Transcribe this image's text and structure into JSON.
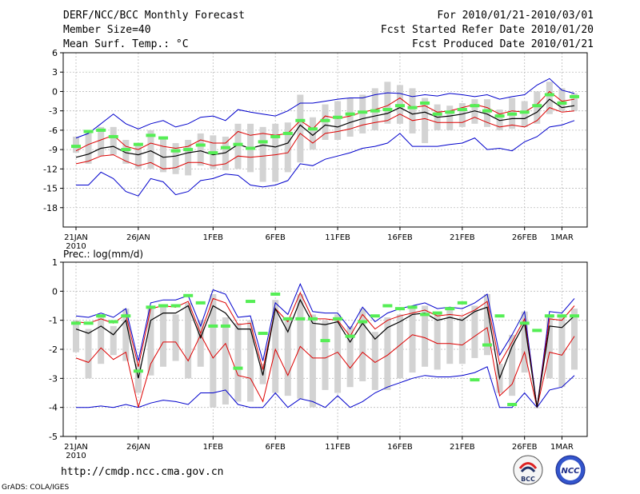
{
  "header": {
    "title": "DERF/NCC/BCC Monthly Forecast",
    "member_size": "Member Size=40",
    "variable_top": "Mean Surf. Temp.: °C",
    "period": "For 2010/01/21-2010/03/01",
    "started": "Fcst Started Refer Date 2010/01/20",
    "produced": "Fcst Produced Date 2010/01/21"
  },
  "footer": {
    "url": "http://cmdp.ncc.cma.gov.cn",
    "grads": "GrADS: COLA/IGES",
    "logo_bcc": "BCC",
    "logo_ncc": "NCC"
  },
  "colors": {
    "box": "#d3d3d3",
    "spread": "#0000cc",
    "lower": "#dd0000",
    "mean": "#000000",
    "median": "#55ee55",
    "grid": "#bbbbbb"
  },
  "chart_data": [
    {
      "type": "line",
      "title": "Mean Surf. Temp.: °C",
      "x_tick_labels": [
        "21JAN",
        "26JAN",
        "1FEB",
        "6FEB",
        "11FEB",
        "16FEB",
        "21FEB",
        "26FEB",
        "1MAR"
      ],
      "x_tick_index": [
        0,
        5,
        11,
        16,
        21,
        26,
        31,
        36,
        39
      ],
      "x_sublabel": "2010",
      "ylim": [
        -21,
        6
      ],
      "yticks": [
        6,
        3,
        0,
        -3,
        -6,
        -9,
        -12,
        -15,
        -18
      ],
      "series": [
        {
          "name": "max",
          "values": [
            -7.2,
            -6.5,
            -5.0,
            -3.5,
            -5.0,
            -5.8,
            -5.0,
            -4.5,
            -5.5,
            -5.0,
            -4.0,
            -3.8,
            -4.5,
            -2.8,
            -3.2,
            -3.5,
            -3.8,
            -3.0,
            -1.8,
            -1.8,
            -1.5,
            -1.2,
            -1.0,
            -1.0,
            -0.5,
            -0.2,
            -0.3,
            -0.8,
            -0.5,
            -0.7,
            -0.3,
            -0.5,
            -0.8,
            -0.5,
            -1.2,
            -0.8,
            -0.5,
            1.0,
            2.0,
            0.2,
            -0.3
          ]
        },
        {
          "name": "upper",
          "values": [
            -9.2,
            -8.2,
            -7.5,
            -6.8,
            -8.5,
            -9.0,
            -8.0,
            -8.5,
            -8.8,
            -8.5,
            -7.5,
            -8.0,
            -8.0,
            -6.2,
            -6.8,
            -6.5,
            -6.8,
            -6.5,
            -4.5,
            -5.8,
            -3.8,
            -4.2,
            -3.8,
            -3.2,
            -2.8,
            -2.2,
            -1.0,
            -2.5,
            -2.2,
            -3.2,
            -3.0,
            -2.5,
            -2.0,
            -2.5,
            -3.5,
            -3.0,
            -3.2,
            -2.0,
            0.0,
            -1.5,
            -1.2
          ]
        },
        {
          "name": "mean",
          "values": [
            -10.2,
            -9.7,
            -8.8,
            -8.5,
            -9.5,
            -9.8,
            -9.2,
            -10.2,
            -10.0,
            -9.5,
            -9.2,
            -9.8,
            -9.5,
            -8.2,
            -8.8,
            -8.3,
            -8.6,
            -8.0,
            -5.2,
            -6.8,
            -5.2,
            -5.5,
            -4.8,
            -4.2,
            -3.8,
            -3.4,
            -2.5,
            -3.5,
            -3.2,
            -4.0,
            -3.8,
            -3.5,
            -3.0,
            -3.5,
            -4.5,
            -4.2,
            -4.2,
            -3.2,
            -1.2,
            -2.5,
            -2.2
          ]
        },
        {
          "name": "lower",
          "values": [
            -11.2,
            -10.8,
            -10.0,
            -9.8,
            -10.8,
            -11.5,
            -11.0,
            -12.0,
            -11.8,
            -11.0,
            -11.0,
            -11.5,
            -11.2,
            -10.0,
            -10.2,
            -10.0,
            -9.8,
            -9.5,
            -6.5,
            -8.0,
            -6.5,
            -6.2,
            -5.8,
            -5.2,
            -4.8,
            -4.5,
            -3.5,
            -4.5,
            -4.2,
            -4.8,
            -4.8,
            -4.8,
            -4.0,
            -4.8,
            -5.5,
            -5.2,
            -5.5,
            -4.5,
            -2.5,
            -3.2,
            -3.0
          ]
        },
        {
          "name": "min",
          "values": [
            -14.5,
            -14.5,
            -12.5,
            -13.5,
            -15.5,
            -16.2,
            -13.5,
            -14.0,
            -16.0,
            -15.5,
            -13.8,
            -13.5,
            -12.8,
            -13.0,
            -14.5,
            -14.8,
            -14.5,
            -13.8,
            -11.2,
            -11.5,
            -10.5,
            -10.0,
            -9.5,
            -8.8,
            -8.5,
            -8.0,
            -6.5,
            -8.5,
            -8.5,
            -8.5,
            -8.2,
            -8.0,
            -7.2,
            -9.0,
            -8.8,
            -9.2,
            -7.8,
            -7.0,
            -5.5,
            -5.2,
            -4.5
          ]
        },
        {
          "name": "median",
          "values": [
            -8.5,
            -6.2,
            -6.0,
            -7.0,
            -9.0,
            -8.2,
            -6.8,
            -7.2,
            -9.2,
            -9.0,
            -8.3,
            -9.5,
            -8.7,
            -8.2,
            -8.8,
            -7.8,
            -7.0,
            -6.5,
            -4.5,
            -5.8,
            -4.5,
            -4.0,
            -3.5,
            -3.2,
            -3.0,
            -2.8,
            -2.2,
            -2.5,
            -1.8,
            -3.5,
            -3.2,
            -2.8,
            -2.2,
            -3.0,
            -3.8,
            -3.5,
            -3.2,
            -2.2,
            -0.5,
            -1.8,
            -0.8
          ]
        },
        {
          "name": "box_top",
          "values": [
            -7.0,
            -6.0,
            -5.5,
            -5.5,
            -7.5,
            -8.0,
            -6.0,
            -7.0,
            -8.0,
            -7.5,
            -6.5,
            -6.8,
            -7.0,
            -5.0,
            -5.0,
            -5.5,
            -5.0,
            -4.8,
            -0.5,
            -4.0,
            -2.0,
            -1.5,
            -1.0,
            -0.5,
            0.5,
            1.5,
            1.0,
            0.5,
            -1.0,
            -2.0,
            -2.2,
            -1.8,
            -1.2,
            -1.2,
            -2.8,
            -1.0,
            -1.5,
            0.0,
            1.5,
            0.5,
            -0.3
          ]
        },
        {
          "name": "box_bottom",
          "values": [
            -9.5,
            -11.2,
            -10.0,
            -9.8,
            -11.2,
            -12.0,
            -12.0,
            -12.5,
            -12.8,
            -13.0,
            -11.5,
            -12.0,
            -12.2,
            -12.0,
            -12.5,
            -14.0,
            -14.0,
            -12.5,
            -11.0,
            -9.0,
            -7.5,
            -7.5,
            -7.0,
            -6.5,
            -6.0,
            -5.0,
            -5.0,
            -6.5,
            -8.0,
            -6.0,
            -6.0,
            -5.5,
            -5.0,
            -5.5,
            -6.0,
            -5.8,
            -5.5,
            -5.0,
            -3.5,
            -3.0,
            -3.0
          ]
        }
      ]
    },
    {
      "type": "line",
      "title": "Prec.: log(mm/d)",
      "x_tick_labels": [
        "21JAN",
        "26JAN",
        "1FEB",
        "6FEB",
        "11FEB",
        "16FEB",
        "21FEB",
        "26FEB",
        "1MAR"
      ],
      "x_tick_index": [
        0,
        5,
        11,
        16,
        21,
        26,
        31,
        36,
        39
      ],
      "x_sublabel": "2010",
      "ylim": [
        -5,
        1
      ],
      "yticks": [
        1,
        0,
        -1,
        -2,
        -3,
        -4,
        -5
      ],
      "series": [
        {
          "name": "max",
          "values": [
            -0.85,
            -0.9,
            -0.75,
            -0.9,
            -0.6,
            -2.4,
            -0.4,
            -0.3,
            -0.3,
            -0.15,
            -1.2,
            0.05,
            -0.1,
            -0.9,
            -0.85,
            -2.4,
            -0.4,
            -0.8,
            0.25,
            -0.7,
            -0.75,
            -0.75,
            -1.3,
            -0.55,
            -1.05,
            -0.75,
            -0.6,
            -0.5,
            -0.4,
            -0.6,
            -0.55,
            -0.6,
            -0.4,
            -0.1,
            -2.2,
            -1.5,
            -0.7,
            -4.0,
            -0.7,
            -0.75,
            -0.25
          ]
        },
        {
          "name": "upper",
          "values": [
            -1.05,
            -1.1,
            -0.95,
            -1.1,
            -0.8,
            -2.6,
            -0.6,
            -0.5,
            -0.55,
            -0.35,
            -1.45,
            -0.25,
            -0.4,
            -1.15,
            -1.1,
            -2.7,
            -0.6,
            -1.05,
            -0.05,
            -0.95,
            -0.95,
            -1.0,
            -1.55,
            -0.8,
            -1.3,
            -1.0,
            -0.85,
            -0.75,
            -0.65,
            -0.85,
            -0.8,
            -0.85,
            -0.65,
            -0.35,
            -2.5,
            -1.75,
            -0.95,
            -4.0,
            -0.95,
            -1.0,
            -0.5
          ]
        },
        {
          "name": "mean",
          "values": [
            -1.3,
            -1.45,
            -1.2,
            -1.5,
            -1.0,
            -3.0,
            -1.0,
            -0.75,
            -0.75,
            -0.5,
            -1.6,
            -0.5,
            -0.75,
            -1.3,
            -1.3,
            -2.9,
            -0.6,
            -1.4,
            -0.3,
            -1.1,
            -1.15,
            -1.05,
            -1.75,
            -1.1,
            -1.65,
            -1.25,
            -1.05,
            -0.8,
            -0.75,
            -1.0,
            -0.9,
            -1.0,
            -0.7,
            -0.55,
            -3.0,
            -1.9,
            -1.1,
            -4.0,
            -1.2,
            -1.25,
            -0.85
          ]
        },
        {
          "name": "lower",
          "values": [
            -2.3,
            -2.45,
            -1.95,
            -2.35,
            -2.1,
            -4.0,
            -2.5,
            -1.75,
            -1.75,
            -2.4,
            -1.5,
            -2.3,
            -1.8,
            -2.9,
            -3.0,
            -3.8,
            -2.0,
            -2.9,
            -1.9,
            -2.3,
            -2.3,
            -2.1,
            -2.65,
            -2.1,
            -2.45,
            -2.2,
            -1.85,
            -1.5,
            -1.6,
            -1.8,
            -1.8,
            -1.85,
            -1.55,
            -1.25,
            -3.6,
            -3.2,
            -2.1,
            -4.0,
            -2.1,
            -2.2,
            -1.55
          ]
        },
        {
          "name": "min",
          "values": [
            -4.0,
            -4.0,
            -3.95,
            -4.0,
            -3.9,
            -4.0,
            -3.85,
            -3.75,
            -3.8,
            -3.9,
            -3.5,
            -3.5,
            -3.4,
            -3.9,
            -4.0,
            -4.0,
            -3.5,
            -4.0,
            -3.7,
            -3.8,
            -4.0,
            -3.6,
            -4.0,
            -3.8,
            -3.5,
            -3.3,
            -3.15,
            -3.0,
            -2.9,
            -2.95,
            -2.95,
            -2.9,
            -2.8,
            -2.6,
            -4.0,
            -4.0,
            -3.5,
            -4.0,
            -3.4,
            -3.3,
            -2.9
          ]
        },
        {
          "name": "median",
          "values": [
            -1.1,
            -1.1,
            -0.85,
            -1.05,
            -0.85,
            -2.75,
            -0.55,
            -0.5,
            -0.5,
            -0.15,
            -0.4,
            -1.2,
            -1.2,
            -2.65,
            -0.35,
            -1.45,
            -0.1,
            -0.95,
            -0.95,
            -0.95,
            -1.7,
            -0.95,
            -1.55,
            -1.05,
            -0.85,
            -0.5,
            -0.6,
            -0.55,
            -0.8,
            -0.75,
            -0.6,
            -0.4,
            -3.05,
            -1.85,
            -0.85,
            -3.9,
            -1.1,
            -1.35,
            -0.85,
            -0.85,
            -0.85
          ]
        },
        {
          "name": "box_top",
          "values": [
            -1.0,
            -1.3,
            -0.9,
            -1.2,
            -0.6,
            -2.5,
            -0.5,
            -0.5,
            -0.8,
            -0.4,
            -1.0,
            -0.1,
            -0.9,
            -1.1,
            -1.0,
            -2.5,
            -0.3,
            -0.9,
            -0.1,
            -0.8,
            -1.0,
            -0.8,
            -1.2,
            -0.6,
            -1.4,
            -0.9,
            -0.8,
            -0.5,
            -0.5,
            -0.8,
            -0.6,
            -0.9,
            -0.5,
            -0.1,
            -2.5,
            -1.5,
            -0.7,
            -4.0,
            -0.8,
            -0.9,
            -0.6
          ]
        },
        {
          "name": "box_bottom",
          "values": [
            -2.1,
            -3.0,
            -2.5,
            -2.2,
            -2.4,
            -3.5,
            -2.9,
            -2.6,
            -2.4,
            -3.0,
            -2.6,
            -4.0,
            -3.9,
            -3.8,
            -3.8,
            -3.2,
            -3.5,
            -3.6,
            -3.7,
            -4.0,
            -3.4,
            -3.5,
            -3.3,
            -3.1,
            -3.4,
            -3.4,
            -3.0,
            -2.8,
            -2.6,
            -2.7,
            -2.5,
            -2.5,
            -2.3,
            -2.2,
            -3.5,
            -3.6,
            -2.8,
            -4.0,
            -3.0,
            -3.3,
            -2.7
          ]
        }
      ]
    }
  ]
}
